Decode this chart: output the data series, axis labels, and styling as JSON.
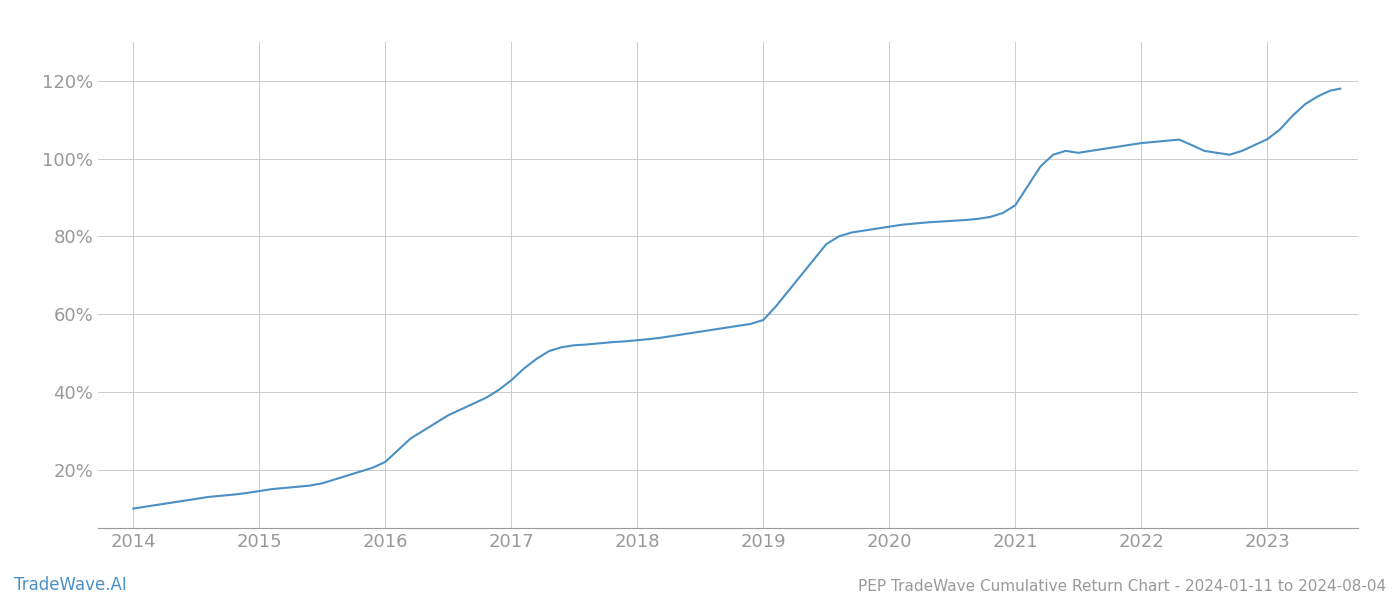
{
  "title": "PEP TradeWave Cumulative Return Chart - 2024-01-11 to 2024-08-04",
  "watermark": "TradeWave.AI",
  "line_color": "#4a90c4",
  "background_color": "#ffffff",
  "grid_color": "#cccccc",
  "x_years": [
    2014,
    2015,
    2016,
    2017,
    2018,
    2019,
    2020,
    2021,
    2022,
    2023
  ],
  "x_data": [
    2014.0,
    2014.1,
    2014.2,
    2014.3,
    2014.4,
    2014.5,
    2014.6,
    2014.7,
    2014.8,
    2014.9,
    2015.0,
    2015.1,
    2015.2,
    2015.3,
    2015.4,
    2015.5,
    2015.6,
    2015.7,
    2015.8,
    2015.9,
    2016.0,
    2016.1,
    2016.2,
    2016.3,
    2016.4,
    2016.5,
    2016.6,
    2016.7,
    2016.8,
    2016.9,
    2017.0,
    2017.1,
    2017.2,
    2017.3,
    2017.4,
    2017.5,
    2017.6,
    2017.7,
    2017.8,
    2017.9,
    2018.0,
    2018.1,
    2018.2,
    2018.3,
    2018.4,
    2018.5,
    2018.6,
    2018.7,
    2018.8,
    2018.9,
    2019.0,
    2019.1,
    2019.2,
    2019.3,
    2019.4,
    2019.5,
    2019.6,
    2019.7,
    2019.8,
    2019.9,
    2020.0,
    2020.1,
    2020.2,
    2020.3,
    2020.4,
    2020.5,
    2020.6,
    2020.7,
    2020.8,
    2020.9,
    2021.0,
    2021.1,
    2021.2,
    2021.3,
    2021.4,
    2021.5,
    2021.6,
    2021.7,
    2021.8,
    2021.9,
    2022.0,
    2022.1,
    2022.2,
    2022.3,
    2022.4,
    2022.5,
    2022.6,
    2022.7,
    2022.8,
    2022.9,
    2023.0,
    2023.1,
    2023.2,
    2023.3,
    2023.4,
    2023.5,
    2023.58
  ],
  "y_data": [
    10.0,
    10.5,
    11.0,
    11.5,
    12.0,
    12.5,
    13.0,
    13.3,
    13.6,
    14.0,
    14.5,
    15.0,
    15.3,
    15.6,
    15.9,
    16.5,
    17.5,
    18.5,
    19.5,
    20.5,
    22.0,
    25.0,
    28.0,
    30.0,
    32.0,
    34.0,
    35.5,
    37.0,
    38.5,
    40.5,
    43.0,
    46.0,
    48.5,
    50.5,
    51.5,
    52.0,
    52.2,
    52.5,
    52.8,
    53.0,
    53.3,
    53.6,
    54.0,
    54.5,
    55.0,
    55.5,
    56.0,
    56.5,
    57.0,
    57.5,
    58.5,
    62.0,
    66.0,
    70.0,
    74.0,
    78.0,
    80.0,
    81.0,
    81.5,
    82.0,
    82.5,
    83.0,
    83.3,
    83.6,
    83.8,
    84.0,
    84.2,
    84.5,
    85.0,
    86.0,
    88.0,
    93.0,
    98.0,
    101.0,
    102.0,
    101.5,
    102.0,
    102.5,
    103.0,
    103.5,
    104.0,
    104.3,
    104.6,
    104.9,
    103.5,
    102.0,
    101.5,
    101.0,
    102.0,
    103.5,
    105.0,
    107.5,
    111.0,
    114.0,
    116.0,
    117.5,
    118.0
  ],
  "ylim": [
    5,
    130
  ],
  "yticks": [
    20,
    40,
    60,
    80,
    100,
    120
  ],
  "ytick_labels": [
    "20%",
    "40%",
    "60%",
    "80%",
    "100%",
    "120%"
  ],
  "line_width": 1.5,
  "title_fontsize": 11,
  "watermark_fontsize": 12,
  "tick_fontsize": 13,
  "tick_color": "#999999",
  "watermark_color": "#4a90c4"
}
